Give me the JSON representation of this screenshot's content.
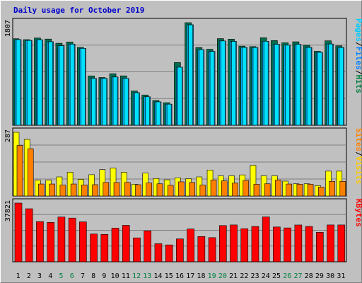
{
  "chart_data": {
    "type": "bar",
    "title": "Daily usage for October 2019",
    "days": [
      "1",
      "2",
      "3",
      "4",
      "5",
      "6",
      "7",
      "8",
      "9",
      "10",
      "11",
      "12",
      "13",
      "14",
      "15",
      "16",
      "17",
      "18",
      "19",
      "20",
      "21",
      "22",
      "23",
      "24",
      "25",
      "26",
      "27",
      "28",
      "29",
      "30",
      "31"
    ],
    "weekend_days": [
      "5",
      "6",
      "12",
      "13",
      "19",
      "20",
      "26",
      "27"
    ],
    "panels": [
      {
        "id": "hits-panel",
        "max_label": "1807",
        "ymax": 1807,
        "legend": [
          {
            "text": "Pages",
            "color": "#00ccff"
          },
          {
            "text": "/",
            "color": "#000000"
          },
          {
            "text": "Files",
            "color": "#0080ff"
          },
          {
            "text": "/",
            "color": "#000000"
          },
          {
            "text": "Hits",
            "color": "#008040"
          }
        ],
        "series": [
          {
            "name": "Hits",
            "color": "#006c4f",
            "values": [
              1524,
              1508,
              1536,
              1518,
              1444,
              1466,
              1371,
              869,
              841,
              907,
              870,
              603,
              533,
              436,
              397,
              1104,
              1807,
              1368,
              1339,
              1526,
              1516,
              1394,
              1385,
              1541,
              1491,
              1452,
              1470,
              1409,
              1302,
              1487,
              1399
            ]
          },
          {
            "name": "Files",
            "color": "#00b0ff",
            "values": [
              1508,
              1493,
              1506,
              1471,
              1401,
              1428,
              1354,
              824,
              824,
              850,
              824,
              573,
              501,
              412,
              371,
              1022,
              1769,
              1331,
              1301,
              1485,
              1477,
              1370,
              1369,
              1479,
              1425,
              1410,
              1425,
              1370,
              1284,
              1431,
              1369
            ]
          },
          {
            "name": "Pages",
            "color": "#00e0ff",
            "values": [
              1508,
              1493,
              1506,
              1471,
              1401,
              1428,
              1354,
              824,
              824,
              850,
              824,
              573,
              501,
              412,
              371,
              1022,
              1769,
              1331,
              1301,
              1485,
              1477,
              1370,
              1369,
              1479,
              1425,
              1410,
              1425,
              1370,
              1284,
              1431,
              1369
            ]
          }
        ]
      },
      {
        "id": "visits-panel",
        "max_label": "287",
        "ymax": 287,
        "legend": [
          {
            "text": "Sites",
            "color": "#ff8000"
          },
          {
            "text": "/",
            "color": "#000000"
          },
          {
            "text": "Visits",
            "color": "#ffcc00"
          }
        ],
        "series": [
          {
            "name": "Visits",
            "color": "#ffff00",
            "values": [
              287,
              255,
              71,
              71,
              86,
              107,
              75,
              96,
              119,
              126,
              107,
              53,
              103,
              79,
              73,
              82,
              78,
              86,
              117,
              91,
              91,
              95,
              138,
              91,
              91,
              67,
              55,
              55,
              47,
              112,
              112
            ]
          },
          {
            "name": "Sites",
            "color": "#ff8000",
            "values": [
              228,
              213,
              54,
              54,
              49,
              54,
              50,
              51,
              61,
              61,
              61,
              51,
              59,
              55,
              48,
              64,
              61,
              49,
              72,
              68,
              58,
              70,
              53,
              55,
              72,
              54,
              53,
              53,
              40,
              66,
              66
            ]
          }
        ]
      },
      {
        "id": "kbytes-panel",
        "max_label": "37821",
        "ymax": 37821,
        "legend": [
          {
            "text": "KBytes",
            "color": "#ff0000"
          }
        ],
        "series": [
          {
            "name": "KBytes",
            "color": "#ff0000",
            "values": [
              37821,
              34160,
              25863,
              25353,
              28816,
              28167,
              25711,
              17885,
              17642,
              21727,
              23471,
              15402,
              19918,
              11638,
              10869,
              14749,
              21122,
              16262,
              15555,
              23322,
              23731,
              21313,
              22745,
              28874,
              22404,
              21810,
              23707,
              22745,
              19004,
              23731,
              23731
            ]
          }
        ]
      }
    ]
  }
}
